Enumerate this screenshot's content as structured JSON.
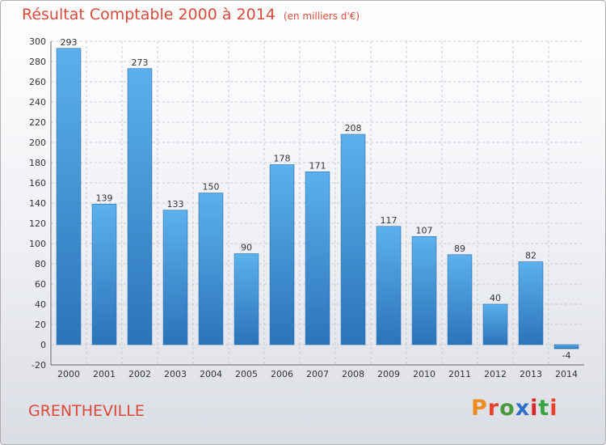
{
  "chart_data": {
    "type": "bar",
    "title": "Résultat Comptable 2000 à 2014",
    "unit_label": "(en milliers d'€)",
    "categories": [
      "2000",
      "2001",
      "2002",
      "2003",
      "2004",
      "2005",
      "2006",
      "2007",
      "2008",
      "2009",
      "2010",
      "2011",
      "2012",
      "2013",
      "2014"
    ],
    "values": [
      293,
      139,
      273,
      133,
      150,
      90,
      178,
      171,
      208,
      117,
      107,
      89,
      40,
      82,
      -4
    ],
    "value_labels": [
      "293",
      "139",
      "273",
      "133",
      "150",
      "90",
      "178",
      "171",
      "208",
      "117",
      "107",
      "89",
      "40",
      "82",
      "-4"
    ],
    "ylim": [
      -20,
      300
    ],
    "yticks": [
      -20,
      0,
      20,
      40,
      60,
      80,
      100,
      120,
      140,
      160,
      180,
      200,
      220,
      240,
      260,
      280,
      300
    ],
    "ytick_labels": [
      "-20",
      "0",
      "20",
      "40",
      "60",
      "80",
      "100",
      "120",
      "140",
      "160",
      "180",
      "200",
      "220",
      "240",
      "260",
      "280",
      "300"
    ],
    "xlabel": "",
    "ylabel": "",
    "grid": true,
    "bar_color": "#3f8fd6"
  },
  "footer": {
    "commune": "GRENTHEVILLE",
    "brand": "Proxiti"
  },
  "colors": {
    "title": "#d94a3a",
    "brand": [
      "#f08a1c",
      "#e8412c",
      "#4a9a3c",
      "#2f6fc8",
      "#d9262a",
      "#3aa33f",
      "#e8412c"
    ]
  }
}
